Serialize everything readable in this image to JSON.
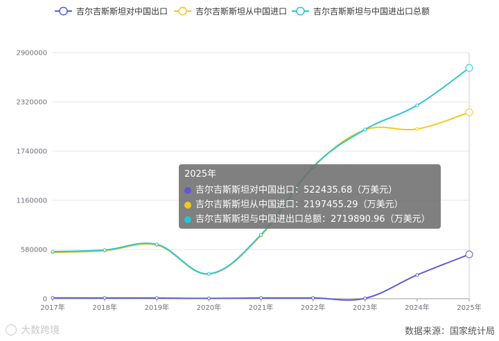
{
  "chart_data": {
    "type": "line",
    "title": "",
    "xlabel": "",
    "ylabel": "",
    "categories": [
      "2017年",
      "2018年",
      "2019年",
      "2020年",
      "2021年",
      "2022年",
      "2023年",
      "2024年",
      "2025年"
    ],
    "y_ticks": [
      "0",
      "580000",
      "1160000",
      "1740000",
      "2320000",
      "2900000"
    ],
    "ylim": [
      0,
      2900000
    ],
    "grid": true,
    "legend_position": "top",
    "series": [
      {
        "name": "吉尔吉斯斯坦对中国出口",
        "color": "#5b5bd6",
        "values": [
          10000,
          9000,
          8000,
          4000,
          9000,
          9000,
          5000,
          280000,
          522435.68
        ]
      },
      {
        "name": "吉尔吉斯斯坦从中国进口",
        "color": "#f4c81f",
        "values": [
          545000,
          565000,
          632000,
          290000,
          745000,
          1545000,
          1990000,
          2000000,
          2197455.29
        ]
      },
      {
        "name": "吉尔吉斯斯坦与中国进出口总额",
        "color": "#26c6d4",
        "values": [
          555000,
          574000,
          640000,
          294000,
          754000,
          1554000,
          1995000,
          2280000,
          2719890.96
        ]
      }
    ]
  },
  "tooltip": {
    "title": "2025年",
    "rows": [
      {
        "color": "#5b5bd6",
        "text": "吉尔吉斯斯坦对中国出口：522435.68（万美元）"
      },
      {
        "color": "#f4c81f",
        "text": "吉尔吉斯斯坦从中国进口：2197455.29（万美元）"
      },
      {
        "color": "#26c6d4",
        "text": "吉尔吉斯斯坦与中国进出口总额：2719890.96（万美元）"
      }
    ]
  },
  "source": "数据来源：国家统计局",
  "watermark": "大数跨境"
}
